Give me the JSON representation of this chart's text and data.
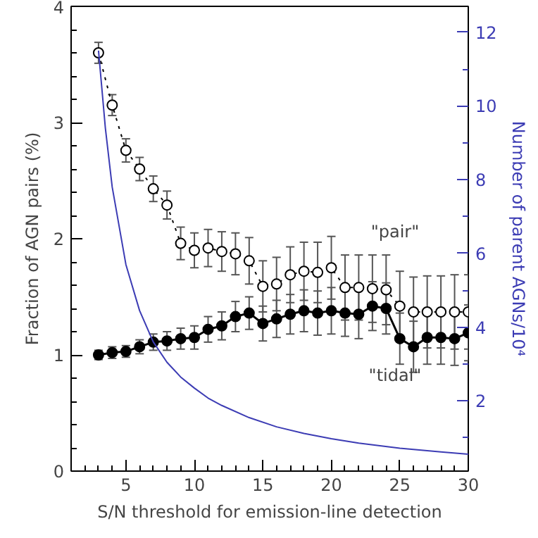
{
  "chart_data": {
    "type": "line",
    "xlabel": "S/N threshold for emission-line detection",
    "ylabel": "Fraction of AGN pairs (%)",
    "y2label": "Number of parent AGNs/10⁴",
    "xlim": [
      1,
      30
    ],
    "xticks": [
      5,
      10,
      15,
      20,
      25,
      30
    ],
    "ylim": [
      0,
      4
    ],
    "yticks": [
      0,
      1,
      2,
      3,
      4
    ],
    "y2lim": [
      0.1,
      12.7
    ],
    "y2ticks": [
      2,
      4,
      6,
      8,
      10,
      12
    ],
    "grid": false,
    "series": [
      {
        "color": "#000000",
        "marker": "circle",
        "line_style": "dotted",
        "x": [
          3,
          4,
          5,
          6,
          7,
          8,
          9,
          10,
          11,
          12,
          13,
          14,
          15,
          16,
          17,
          18,
          19,
          20,
          21,
          22,
          23,
          24,
          25,
          26,
          27,
          28,
          29,
          30
        ],
        "values": [
          3.6,
          3.15,
          2.76,
          2.6,
          2.43,
          2.29,
          1.96,
          1.9,
          1.92,
          1.89,
          1.87,
          1.81,
          1.59,
          1.61,
          1.69,
          1.72,
          1.71,
          1.75,
          1.58,
          1.58,
          1.57,
          1.56,
          1.42,
          1.37,
          1.37,
          1.37,
          1.37,
          1.37
        ],
        "errors": [
          0.09,
          0.09,
          0.1,
          0.1,
          0.11,
          0.12,
          0.14,
          0.15,
          0.16,
          0.17,
          0.18,
          0.2,
          0.22,
          0.23,
          0.24,
          0.25,
          0.26,
          0.27,
          0.28,
          0.28,
          0.29,
          0.3,
          0.3,
          0.3,
          0.31,
          0.31,
          0.32,
          0.32
        ]
      },
      {
        "color": "#000000",
        "marker": "circle",
        "line_style": "solid",
        "x": [
          3,
          4,
          5,
          6,
          7,
          8,
          9,
          10,
          11,
          12,
          13,
          14,
          15,
          16,
          17,
          18,
          19,
          20,
          21,
          22,
          23,
          24,
          25,
          26,
          27,
          28,
          29,
          30
        ],
        "values": [
          1.0,
          1.02,
          1.03,
          1.07,
          1.11,
          1.12,
          1.14,
          1.15,
          1.22,
          1.25,
          1.33,
          1.36,
          1.27,
          1.31,
          1.35,
          1.38,
          1.36,
          1.38,
          1.36,
          1.35,
          1.42,
          1.4,
          1.14,
          1.07,
          1.15,
          1.15,
          1.14,
          1.19
        ],
        "errors": [
          0.04,
          0.05,
          0.05,
          0.06,
          0.07,
          0.08,
          0.09,
          0.1,
          0.11,
          0.12,
          0.13,
          0.14,
          0.15,
          0.16,
          0.17,
          0.18,
          0.19,
          0.2,
          0.2,
          0.21,
          0.21,
          0.22,
          0.22,
          0.22,
          0.23,
          0.23,
          0.23,
          0.24
        ]
      },
      {
        "color": "#3c3cb4",
        "marker": "none",
        "line_style": "solid",
        "axis": "y2",
        "x": [
          3,
          3.5,
          4,
          5,
          6,
          7,
          8,
          9,
          10,
          11,
          12,
          14,
          16,
          18,
          20,
          22,
          25,
          28,
          30
        ],
        "values": [
          11.5,
          9.4,
          7.8,
          5.7,
          4.45,
          3.6,
          3.05,
          2.65,
          2.35,
          2.08,
          1.88,
          1.55,
          1.3,
          1.12,
          0.98,
          0.86,
          0.72,
          0.62,
          0.56
        ]
      }
    ],
    "annotations": [
      "\"pair\"",
      "\"tidal\""
    ]
  }
}
